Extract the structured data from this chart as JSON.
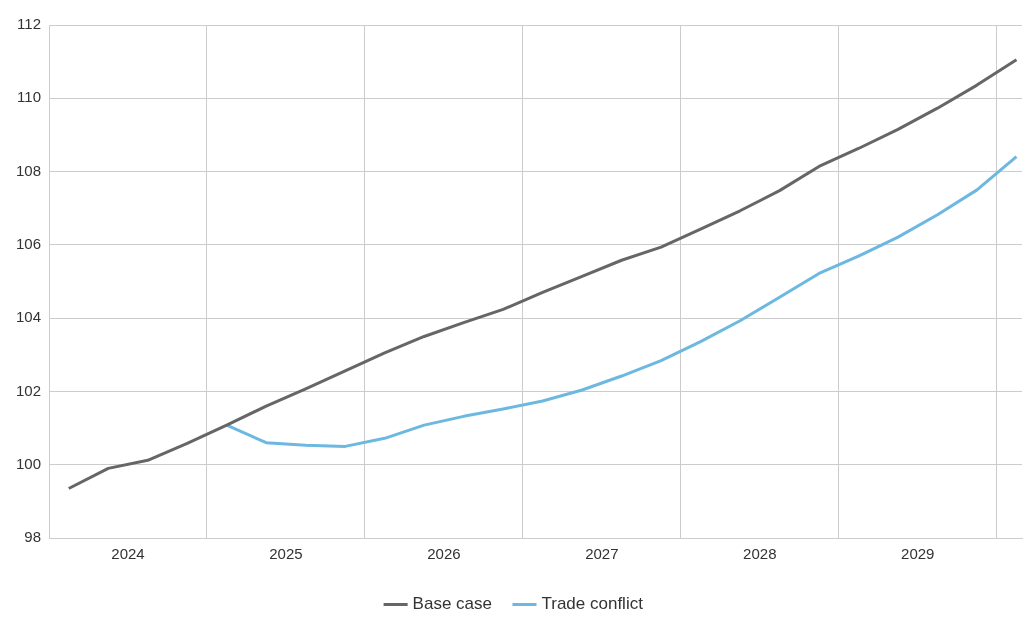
{
  "chart_data": {
    "type": "line",
    "x": [
      2024.125,
      2024.375,
      2024.625,
      2024.875,
      2025.125,
      2025.375,
      2025.625,
      2025.875,
      2026.125,
      2026.375,
      2026.625,
      2026.875,
      2027.125,
      2027.375,
      2027.625,
      2027.875,
      2028.125,
      2028.375,
      2028.625,
      2028.875,
      2029.125,
      2029.375,
      2029.625,
      2029.875,
      2030.125
    ],
    "series": [
      {
        "name": "Base case",
        "color": "#666666",
        "values": [
          99.35,
          99.9,
          100.12,
          100.58,
          101.08,
          101.6,
          102.07,
          102.56,
          103.05,
          103.5,
          103.88,
          104.24,
          104.7,
          105.14,
          105.58,
          105.94,
          106.43,
          106.93,
          107.48,
          108.14,
          108.63,
          109.15,
          109.73,
          110.36,
          111.05
        ]
      },
      {
        "name": "Trade conflict",
        "color": "#6cb8e0",
        "values": [
          null,
          null,
          null,
          null,
          101.08,
          100.6,
          100.53,
          100.5,
          100.72,
          101.08,
          101.32,
          101.52,
          101.74,
          102.04,
          102.42,
          102.84,
          103.36,
          103.93,
          104.57,
          105.22,
          105.69,
          106.21,
          106.82,
          107.5,
          108.41
        ]
      }
    ],
    "xlim": [
      2024,
      2030.16
    ],
    "xticks": [
      {
        "value": 2025,
        "label": null
      },
      {
        "value": 2026,
        "label": null
      },
      {
        "value": 2027,
        "label": null
      },
      {
        "value": 2028,
        "label": null
      },
      {
        "value": 2029,
        "label": null
      },
      {
        "value": 2030,
        "label": null
      },
      {
        "value": 2024.5,
        "label": "2024"
      },
      {
        "value": 2025.5,
        "label": "2025"
      },
      {
        "value": 2026.5,
        "label": "2026"
      },
      {
        "value": 2027.5,
        "label": "2027"
      },
      {
        "value": 2028.5,
        "label": "2028"
      },
      {
        "value": 2029.5,
        "label": "2029"
      }
    ],
    "ylim": [
      98,
      112
    ],
    "yticks": [
      98,
      100,
      102,
      104,
      106,
      108,
      110,
      112
    ],
    "grid": true,
    "legend": "bottom",
    "marker": "none",
    "line_style": "solid"
  }
}
